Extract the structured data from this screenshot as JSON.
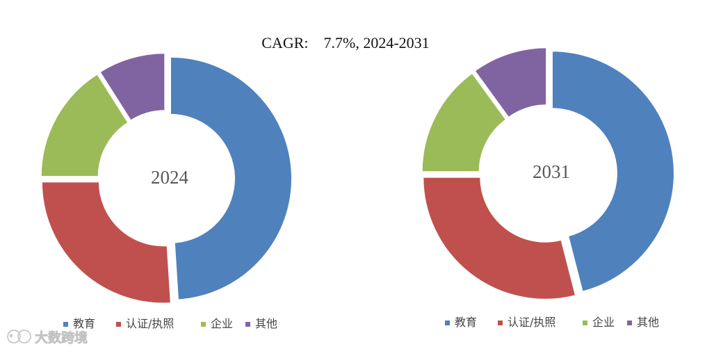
{
  "chart_data": {
    "type": "pie",
    "title": "CAGR:    7.7%, 2024-2031",
    "categories": [
      "教育",
      "认证/执照",
      "企业",
      "其他"
    ],
    "colors": [
      "#4f81bd",
      "#c0504d",
      "#9bbb59",
      "#8064a2"
    ],
    "charts": [
      {
        "center_label": "2024",
        "values": [
          49,
          26,
          16,
          9
        ]
      },
      {
        "center_label": "2031",
        "values": [
          46,
          29,
          15,
          10
        ]
      }
    ]
  },
  "watermark": {
    "text": "大数跨境"
  }
}
